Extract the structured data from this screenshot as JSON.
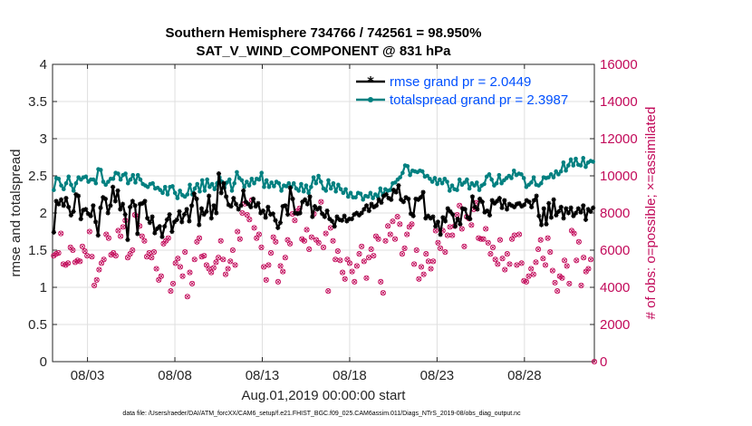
{
  "chart_data": {
    "type": "line",
    "title": "Southern Hemisphere 734766 / 742561 = 98.950%",
    "subtitle": "SAT_V_WIND_COMPONENT @ 831 hPa",
    "xlabel": "Aug.01,2019 00:00:00 start",
    "ylabel": "rmse and totalspread",
    "ylabel_right": "# of obs: o=possible; ×=assimilated",
    "footnote": "data file: /Users/raeder/DAI/ATM_forcXX/CAM6_setup/f.e21.FHIST_BGC.f09_025.CAM6assim.011/Diags_NTrS_2019-08/obs_diag_output.nc",
    "x_range": [
      1,
      32
    ],
    "x_ticks": [
      {
        "value": 3,
        "label": "08/03"
      },
      {
        "value": 8,
        "label": "08/08"
      },
      {
        "value": 13,
        "label": "08/13"
      },
      {
        "value": 18,
        "label": "08/18"
      },
      {
        "value": 23,
        "label": "08/23"
      },
      {
        "value": 28,
        "label": "08/28"
      }
    ],
    "ylim": [
      0,
      4
    ],
    "y_ticks": [
      "0",
      "0.5",
      "1",
      "1.5",
      "2",
      "2.5",
      "3",
      "3.5",
      "4"
    ],
    "ylim_right": [
      0,
      16000
    ],
    "y_ticks_right": [
      "0",
      "2000",
      "4000",
      "6000",
      "8000",
      "10000",
      "12000",
      "14000",
      "16000"
    ],
    "grid": true,
    "legend_position": "top-right",
    "colors": {
      "rmse": "#000000",
      "spread": "#008080",
      "obs": "#c20a5a",
      "legend_text": "#0050ff"
    },
    "series": [
      {
        "name": "rmse grand pr = 2.0449",
        "axis": "left",
        "values": [
          1.74,
          2.16,
          2.12,
          2.18,
          2.1,
          2.2,
          2.08,
          1.97,
          2.02,
          2.25,
          2.23,
          1.92,
          2.04,
          2.05,
          1.99,
          1.96,
          2.1,
          1.88,
          1.7,
          2.07,
          2.21,
          2.19,
          2.0,
          2.1,
          2.35,
          2.16,
          2.3,
          2.05,
          2.12,
          1.98,
          1.64,
          2.08,
          2.16,
          2.1,
          1.72,
          2.12,
          2.13,
          2.16,
          1.93,
          1.87,
          1.95,
          1.73,
          1.79,
          1.82,
          1.68,
          1.82,
          1.91,
          1.98,
          1.75,
          1.88,
          1.91,
          2.02,
          1.88,
          1.98,
          2.05,
          1.89,
          2.1,
          2.26,
          2.19,
          1.84,
          2.06,
          1.98,
          2.02,
          2.23,
          1.93,
          2.1,
          2.0,
          2.53,
          2.27,
          2.4,
          2.22,
          2.11,
          2.09,
          2.2,
          2.12,
          2.05,
          2.1,
          2.3,
          2.15,
          2.12,
          2.08,
          2.19,
          2.09,
          2.13,
          2.0,
          2.03,
          1.94,
          2.08,
          1.98,
          1.99,
          1.9,
          1.8,
          1.87,
          2.09,
          2.1,
          1.98,
          2.34,
          2.19,
          2.0,
          1.99,
          2.0,
          2.15,
          2.18,
          2.12,
          2.22,
          1.95,
          2.09,
          2.05,
          2.07,
          1.99,
          1.95,
          2.03,
          1.92,
          1.89,
          1.82,
          1.95,
          1.91,
          1.9,
          1.96,
          1.89,
          1.92,
          1.92,
          1.98,
          2.0,
          1.97,
          2.0,
          2.05,
          2.1,
          2.03,
          2.12,
          2.08,
          2.1,
          2.18,
          2.14,
          2.23,
          2.25,
          2.2,
          2.18,
          2.31,
          2.28,
          2.37,
          2.18,
          2.15,
          2.21,
          2.19,
          1.99,
          1.96,
          2.19,
          2.18,
          2.21,
          2.28,
          1.93,
          1.96,
          1.93,
          1.95,
          1.82,
          1.88,
          1.71,
          1.94,
          1.89,
          2.06,
          2.02,
          1.98,
          1.82,
          1.92,
          1.85,
          2.06,
          2.05,
          1.94,
          1.92,
          2.22,
          2.08,
          2.05,
          2.19,
          2.15,
          2.01,
          2.03,
          1.97,
          2.17,
          2.13,
          2.16,
          2.2,
          2.07,
          2.17,
          2.05,
          2.12,
          2.1,
          2.08,
          2.12,
          2.13,
          2.09,
          2.11,
          2.17,
          2.15,
          2.08,
          2.17,
          2.23,
          1.96,
          1.84,
          2.06,
          1.85,
          2.13,
          1.94,
          2.18,
          1.97,
          2.02,
          2.08,
          1.93,
          2.06,
          2.0,
          2.07,
          1.96,
          2.0,
          2.06,
          2.01,
          2.1,
          1.91,
          2.05,
          2.02,
          2.07
        ]
      },
      {
        "name": "totalspread grand pr = 2.3987",
        "axis": "left",
        "values": [
          2.31,
          2.47,
          2.46,
          2.37,
          2.32,
          2.4,
          2.49,
          2.38,
          2.3,
          2.4,
          2.48,
          2.45,
          2.48,
          2.49,
          2.42,
          2.45,
          2.45,
          2.4,
          2.59,
          2.58,
          2.42,
          2.38,
          2.42,
          2.46,
          2.46,
          2.54,
          2.53,
          2.45,
          2.51,
          2.53,
          2.4,
          2.45,
          2.51,
          2.41,
          2.51,
          2.45,
          2.39,
          2.37,
          2.35,
          2.39,
          2.4,
          2.33,
          2.34,
          2.31,
          2.27,
          2.35,
          2.25,
          2.35,
          2.36,
          2.27,
          2.2,
          2.3,
          2.24,
          2.22,
          2.25,
          2.38,
          2.25,
          2.33,
          2.39,
          2.29,
          2.44,
          2.3,
          2.45,
          2.35,
          2.39,
          2.32,
          2.4,
          2.48,
          2.42,
          2.34,
          2.41,
          2.45,
          2.3,
          2.4,
          2.55,
          2.47,
          2.44,
          2.35,
          2.42,
          2.37,
          2.46,
          2.4,
          2.46,
          2.45,
          2.54,
          2.35,
          2.44,
          2.35,
          2.41,
          2.36,
          2.42,
          2.4,
          2.3,
          2.37,
          2.36,
          2.4,
          2.35,
          2.4,
          2.33,
          2.3,
          2.39,
          2.29,
          2.37,
          2.27,
          2.35,
          2.48,
          2.4,
          2.5,
          2.42,
          2.33,
          2.3,
          2.44,
          2.33,
          2.4,
          2.29,
          2.38,
          2.32,
          2.27,
          2.32,
          2.22,
          2.27,
          2.21,
          2.21,
          2.27,
          2.26,
          2.18,
          2.23,
          2.22,
          2.27,
          2.2,
          2.25,
          2.22,
          2.33,
          2.24,
          2.32,
          2.3,
          2.31,
          2.4,
          2.41,
          2.45,
          2.48,
          2.54,
          2.64,
          2.63,
          2.51,
          2.57,
          2.56,
          2.55,
          2.57,
          2.56,
          2.49,
          2.5,
          2.46,
          2.42,
          2.47,
          2.39,
          2.45,
          2.4,
          2.46,
          2.42,
          2.3,
          2.37,
          2.32,
          2.31,
          2.45,
          2.38,
          2.41,
          2.45,
          2.33,
          2.4,
          2.37,
          2.41,
          2.31,
          2.37,
          2.39,
          2.49,
          2.52,
          2.45,
          2.37,
          2.4,
          2.51,
          2.4,
          2.44,
          2.47,
          2.5,
          2.47,
          2.57,
          2.51,
          2.53,
          2.52,
          2.47,
          2.35,
          2.38,
          2.41,
          2.48,
          2.38,
          2.37,
          2.4,
          2.48,
          2.47,
          2.48,
          2.52,
          2.48,
          2.56,
          2.52,
          2.56,
          2.68,
          2.57,
          2.64,
          2.72,
          2.64,
          2.73,
          2.65,
          2.64,
          2.74,
          2.62,
          2.68,
          2.7,
          2.69
        ]
      },
      {
        "name": "# of obs possible/assimilated",
        "axis": "right",
        "values": [
          5700,
          5800,
          5850,
          6900,
          5250,
          5200,
          5300,
          6150,
          6000,
          5350,
          5450,
          5400,
          6200,
          5950,
          5700,
          7000,
          5650,
          4100,
          4400,
          4950,
          5300,
          5500,
          6850,
          6650,
          5750,
          5850,
          5700,
          7050,
          6750,
          7250,
          7600,
          5600,
          5800,
          6000,
          7900,
          7800,
          7300,
          6750,
          6500,
          5650,
          5850,
          5600,
          5900,
          5000,
          4400,
          4600,
          6350,
          6500,
          6650,
          3800,
          4200,
          5300,
          5550,
          5100,
          4600,
          5900,
          3500,
          4800,
          4200,
          5500,
          6450,
          6650,
          5650,
          5700,
          5200,
          5000,
          4800,
          5050,
          5350,
          5600,
          6500,
          5500,
          4700,
          5000,
          5400,
          6000,
          5200,
          7000,
          6600,
          8000,
          8500,
          7900,
          7650,
          8700,
          7200,
          6650,
          6850,
          6150,
          5100,
          4400,
          5200,
          5850,
          6700,
          6450,
          4300,
          5150,
          4850,
          5600,
          6550,
          6350,
          7950,
          7600,
          8100,
          8250,
          6600,
          6500,
          7100,
          6050,
          6700,
          7950,
          6550,
          6400,
          8600,
          6150,
          6900,
          3800,
          7200,
          6500,
          5500,
          5950,
          5450,
          4800,
          4450,
          5500,
          5300,
          4850,
          4300,
          5150,
          5800,
          6200,
          5400,
          4500,
          5600,
          6050,
          5700,
          6750,
          6600,
          4300,
          3700,
          6500,
          7300,
          6850,
          7550,
          6600,
          7800,
          7400,
          5800,
          6100,
          6850,
          7250,
          7400,
          5250,
          6000,
          4450,
          5100,
          4700,
          5800,
          5400,
          5000,
          5400,
          7050,
          6400,
          6100,
          7050,
          5900,
          6800,
          7250,
          6800,
          7300,
          7900,
          8400,
          7150,
          6200,
          7800,
          7700,
          7350,
          8200,
          8550,
          6650,
          6600,
          6600,
          7150,
          6400,
          5800,
          6150,
          5500,
          5250,
          6550,
          5550,
          4950,
          5800,
          5250,
          6600,
          6800,
          5200,
          6850,
          5300,
          4350,
          4300,
          4600,
          5000,
          4700,
          5350,
          6050,
          6550,
          5550,
          5200,
          6650,
          5900,
          4900,
          4250,
          3800,
          4600,
          4500,
          5450,
          5150,
          4200,
          7050,
          6900,
          5450,
          6450,
          4100,
          5600,
          4850,
          5000,
          5500,
          0
        ]
      }
    ]
  },
  "legend": {
    "rmse_label": "rmse grand pr = 2.0449",
    "spread_label": "totalspread grand pr = 2.3987"
  }
}
